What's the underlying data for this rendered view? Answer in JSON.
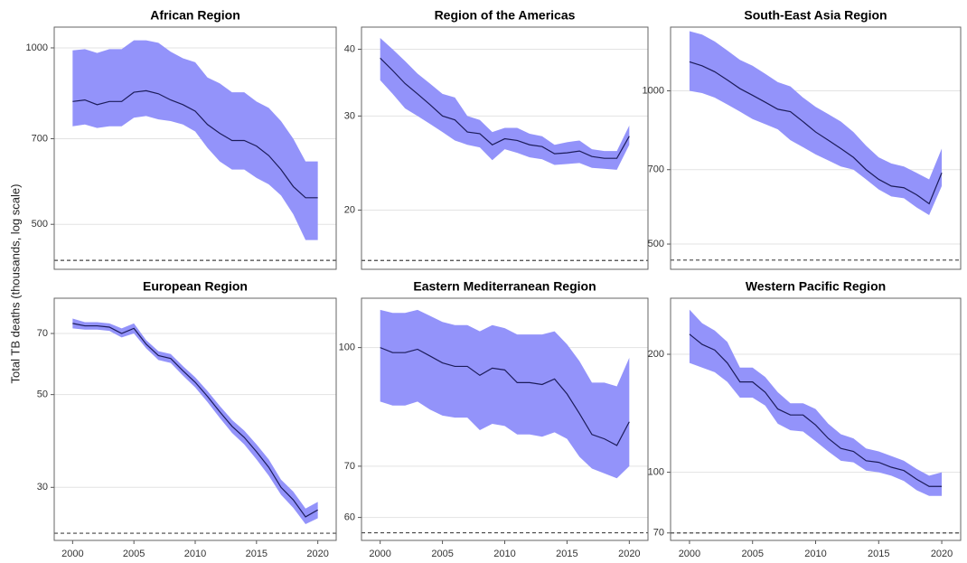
{
  "y_axis_label": "Total TB deaths (thousands, log scale)",
  "chart_data": [
    {
      "type": "line",
      "title": "African Region",
      "log_scale": true,
      "grid": true,
      "color": "#1c1c5a",
      "band_color": "#9393fa",
      "x": [
        2000,
        2001,
        2002,
        2003,
        2004,
        2005,
        2006,
        2007,
        2008,
        2009,
        2010,
        2011,
        2012,
        2013,
        2014,
        2015,
        2016,
        2017,
        2018,
        2019,
        2020
      ],
      "values": [
        810,
        815,
        800,
        810,
        810,
        840,
        845,
        835,
        815,
        800,
        780,
        740,
        715,
        695,
        695,
        680,
        655,
        620,
        580,
        555,
        555
      ],
      "lower": [
        735,
        740,
        730,
        735,
        735,
        760,
        765,
        755,
        750,
        740,
        720,
        675,
        640,
        620,
        620,
        600,
        585,
        560,
        520,
        470,
        470
      ],
      "upper": [
        990,
        995,
        980,
        995,
        995,
        1030,
        1030,
        1020,
        985,
        960,
        945,
        890,
        870,
        840,
        840,
        810,
        790,
        750,
        700,
        640,
        640
      ],
      "xlim": [
        1998.5,
        2021.5
      ],
      "ylim": [
        419,
        1085
      ],
      "yticks": [
        500,
        700,
        1000
      ],
      "target": 434
    },
    {
      "type": "line",
      "title": "Region of the Americas",
      "log_scale": true,
      "grid": true,
      "color": "#1c1c5a",
      "band_color": "#9393fa",
      "x": [
        2000,
        2001,
        2002,
        2003,
        2004,
        2005,
        2006,
        2007,
        2008,
        2009,
        2010,
        2011,
        2012,
        2013,
        2014,
        2015,
        2016,
        2017,
        2018,
        2019,
        2020
      ],
      "values": [
        38.5,
        36.5,
        34.5,
        33,
        31.5,
        30,
        29.5,
        28,
        27.8,
        26.5,
        27.2,
        27,
        26.5,
        26.3,
        25.5,
        25.6,
        25.8,
        25.2,
        25,
        25,
        27.5
      ],
      "lower": [
        35,
        33,
        31,
        30,
        29,
        28,
        27,
        26.5,
        26.2,
        24.8,
        26,
        25.6,
        25.1,
        24.9,
        24.3,
        24.4,
        24.5,
        24,
        23.9,
        23.8,
        26.5
      ],
      "upper": [
        42,
        40,
        38,
        36,
        34.5,
        33,
        32.5,
        30,
        29.5,
        28,
        28.5,
        28.5,
        27.8,
        27.5,
        26.5,
        26.8,
        27,
        26,
        25.8,
        25.8,
        28.8
      ],
      "xlim": [
        1998.5,
        2021.5
      ],
      "ylim": [
        15.5,
        44
      ],
      "yticks": [
        20,
        30,
        40
      ],
      "target": 16.1
    },
    {
      "type": "line",
      "title": "South-East Asia Region",
      "log_scale": true,
      "grid": true,
      "color": "#1c1c5a",
      "band_color": "#9393fa",
      "x": [
        2000,
        2001,
        2002,
        2003,
        2004,
        2005,
        2006,
        2007,
        2008,
        2009,
        2010,
        2011,
        2012,
        2013,
        2014,
        2015,
        2016,
        2017,
        2018,
        2019,
        2020
      ],
      "values": [
        1140,
        1120,
        1090,
        1050,
        1010,
        980,
        950,
        920,
        910,
        870,
        830,
        800,
        770,
        740,
        700,
        670,
        650,
        645,
        625,
        600,
        690
      ],
      "lower": [
        1000,
        990,
        970,
        940,
        910,
        880,
        860,
        840,
        800,
        775,
        750,
        730,
        710,
        700,
        670,
        640,
        620,
        615,
        590,
        570,
        650
      ],
      "upper": [
        1310,
        1290,
        1250,
        1200,
        1150,
        1120,
        1080,
        1040,
        1020,
        970,
        930,
        900,
        870,
        830,
        780,
        740,
        720,
        710,
        690,
        670,
        770
      ],
      "xlim": [
        1998.5,
        2021.5
      ],
      "ylim": [
        446,
        1334
      ],
      "yticks": [
        500,
        700,
        1000
      ],
      "target": 465
    },
    {
      "type": "line",
      "title": "European Region",
      "log_scale": true,
      "grid": true,
      "color": "#1c1c5a",
      "band_color": "#9393fa",
      "x": [
        2000,
        2001,
        2002,
        2003,
        2004,
        2005,
        2006,
        2007,
        2008,
        2009,
        2010,
        2011,
        2012,
        2013,
        2014,
        2015,
        2016,
        2017,
        2018,
        2019,
        2020
      ],
      "values": [
        74,
        73,
        73,
        72.5,
        70,
        72,
        66,
        62,
        61,
        57,
        53.5,
        49.5,
        45.5,
        42,
        39.5,
        36.5,
        33.5,
        30,
        28,
        25.5,
        26.5
      ],
      "lower": [
        72,
        71.5,
        71.5,
        71,
        68.5,
        70,
        64.5,
        60.5,
        59.5,
        55.5,
        52,
        48,
        44,
        40.5,
        38,
        35,
        32,
        28.8,
        26.8,
        24.5,
        25.3
      ],
      "upper": [
        76,
        74.5,
        74.5,
        74,
        72,
        74,
        67.5,
        63.5,
        62.5,
        58.5,
        55,
        51,
        47,
        43.5,
        41,
        38,
        35,
        31.3,
        29.3,
        26.7,
        27.7
      ],
      "xlim": [
        1998.5,
        2021.5
      ],
      "ylim": [
        22.4,
        85
      ],
      "yticks": [
        30,
        50,
        70
      ],
      "xticks": [
        2000,
        2005,
        2010,
        2015,
        2020
      ],
      "target": 23.3
    },
    {
      "type": "line",
      "title": "Eastern Mediterranean Region",
      "log_scale": true,
      "grid": true,
      "color": "#1c1c5a",
      "band_color": "#9393fa",
      "x": [
        2000,
        2001,
        2002,
        2003,
        2004,
        2005,
        2006,
        2007,
        2008,
        2009,
        2010,
        2011,
        2012,
        2013,
        2014,
        2015,
        2016,
        2017,
        2018,
        2019,
        2020
      ],
      "values": [
        100,
        98.5,
        98.5,
        99.5,
        97.5,
        95.5,
        94.5,
        94.5,
        92,
        94,
        93.5,
        90,
        90,
        89.5,
        91,
        87,
        82,
        77,
        76,
        74.5,
        80
      ],
      "lower": [
        85,
        84,
        84,
        85,
        83,
        81.5,
        81,
        81,
        78,
        79.5,
        79,
        77,
        77,
        76.5,
        77.5,
        76,
        72,
        69.5,
        68.5,
        67.5,
        70
      ],
      "upper": [
        112,
        111,
        111,
        112,
        110,
        108,
        107,
        107,
        105,
        107,
        106,
        104,
        104,
        104,
        105,
        101,
        96,
        90,
        90,
        89,
        97
      ],
      "xlim": [
        1998.5,
        2021.5
      ],
      "ylim": [
        56,
        116
      ],
      "yticks": [
        60,
        70,
        100
      ],
      "xticks": [
        2000,
        2005,
        2010,
        2015,
        2020
      ],
      "target": 57.3
    },
    {
      "type": "line",
      "title": "Western Pacific Region",
      "log_scale": true,
      "grid": true,
      "color": "#1c1c5a",
      "band_color": "#9393fa",
      "x": [
        2000,
        2001,
        2002,
        2003,
        2004,
        2005,
        2006,
        2007,
        2008,
        2009,
        2010,
        2011,
        2012,
        2013,
        2014,
        2015,
        2016,
        2017,
        2018,
        2019,
        2020
      ],
      "values": [
        225,
        212,
        205,
        190,
        170,
        170,
        160,
        145,
        140,
        140,
        132,
        122,
        115,
        113,
        107,
        106,
        103,
        101,
        96,
        92,
        92
      ],
      "lower": [
        190,
        185,
        180,
        170,
        155,
        155,
        148,
        133,
        128,
        127,
        120,
        113,
        107,
        106,
        101,
        100,
        98,
        95,
        90,
        87,
        87
      ],
      "upper": [
        260,
        240,
        230,
        215,
        185,
        185,
        175,
        160,
        150,
        150,
        145,
        133,
        125,
        122,
        115,
        113,
        110,
        107,
        102,
        98,
        100
      ],
      "xlim": [
        1998.5,
        2021.5
      ],
      "ylim": [
        67,
        278
      ],
      "yticks": [
        70,
        100,
        200
      ],
      "xticks": [
        2000,
        2005,
        2010,
        2015,
        2020
      ],
      "target": 70
    }
  ]
}
